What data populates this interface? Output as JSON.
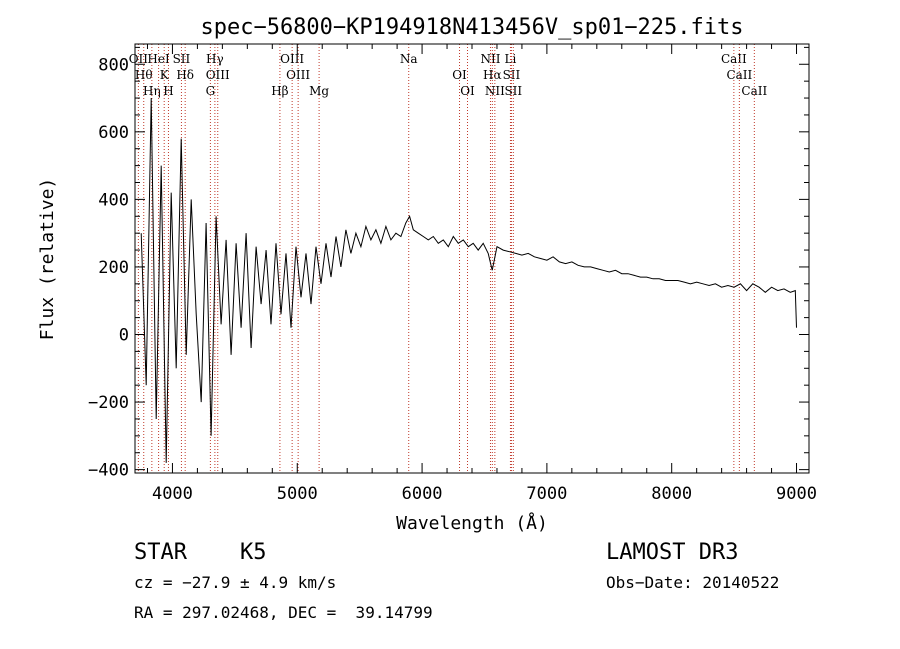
{
  "chart_data": {
    "type": "line",
    "title": "spec−56800−KP194918N413456V_sp01−225.fits",
    "xlabel": "Wavelength (Å)",
    "ylabel": "Flux (relative)",
    "xlim": [
      3700,
      9100
    ],
    "ylim": [
      -410,
      860
    ],
    "x_ticks": [
      4000,
      5000,
      6000,
      7000,
      8000,
      9000
    ],
    "y_ticks": [
      -400,
      -200,
      0,
      200,
      400,
      600,
      800
    ],
    "y_tick_labels": [
      "−400",
      "−200",
      "0",
      "200",
      "400",
      "600",
      "800"
    ],
    "grid": false,
    "series": [
      {
        "name": "flux",
        "x": [
          3750,
          3790,
          3830,
          3870,
          3910,
          3950,
          3990,
          4030,
          4070,
          4110,
          4150,
          4190,
          4230,
          4270,
          4310,
          4350,
          4390,
          4430,
          4470,
          4510,
          4550,
          4590,
          4630,
          4670,
          4710,
          4750,
          4790,
          4830,
          4870,
          4910,
          4950,
          4990,
          5030,
          5070,
          5110,
          5150,
          5190,
          5230,
          5270,
          5310,
          5350,
          5390,
          5430,
          5470,
          5510,
          5550,
          5590,
          5630,
          5670,
          5710,
          5750,
          5790,
          5830,
          5870,
          5900,
          5930,
          5970,
          6010,
          6050,
          6090,
          6130,
          6170,
          6210,
          6250,
          6290,
          6330,
          6370,
          6410,
          6450,
          6490,
          6530,
          6562,
          6600,
          6650,
          6700,
          6750,
          6800,
          6850,
          6900,
          6950,
          7000,
          7050,
          7100,
          7150,
          7200,
          7250,
          7300,
          7350,
          7400,
          7450,
          7500,
          7550,
          7600,
          7650,
          7700,
          7750,
          7800,
          7850,
          7900,
          7950,
          8000,
          8050,
          8100,
          8150,
          8200,
          8250,
          8300,
          8350,
          8400,
          8450,
          8500,
          8550,
          8600,
          8650,
          8700,
          8750,
          8800,
          8850,
          8900,
          8950,
          8990,
          9000
        ],
        "y": [
          300,
          -150,
          700,
          -250,
          500,
          -380,
          420,
          -100,
          580,
          -60,
          400,
          60,
          -200,
          330,
          -300,
          350,
          30,
          280,
          -60,
          270,
          20,
          300,
          -40,
          260,
          90,
          250,
          30,
          270,
          60,
          240,
          20,
          260,
          110,
          240,
          90,
          260,
          150,
          270,
          170,
          290,
          200,
          310,
          240,
          300,
          260,
          320,
          280,
          310,
          270,
          320,
          280,
          300,
          290,
          330,
          350,
          310,
          300,
          290,
          280,
          290,
          270,
          280,
          260,
          290,
          270,
          280,
          260,
          270,
          250,
          270,
          240,
          190,
          260,
          250,
          245,
          240,
          235,
          240,
          230,
          225,
          220,
          230,
          215,
          210,
          215,
          205,
          200,
          200,
          195,
          190,
          185,
          190,
          180,
          180,
          175,
          170,
          170,
          165,
          165,
          160,
          160,
          160,
          155,
          150,
          155,
          150,
          145,
          150,
          140,
          145,
          140,
          150,
          130,
          150,
          140,
          125,
          140,
          130,
          135,
          125,
          130,
          20
        ]
      }
    ],
    "line_markers": [
      {
        "wavelength": 3727,
        "label": "OII"
      },
      {
        "wavelength": 3770,
        "label": "Hθ"
      },
      {
        "wavelength": 3835,
        "label": "Hη"
      },
      {
        "wavelength": 3889,
        "label": "HeI"
      },
      {
        "wavelength": 3934,
        "label": "K"
      },
      {
        "wavelength": 3968,
        "label": "H"
      },
      {
        "wavelength": 4072,
        "label": "SII"
      },
      {
        "wavelength": 4102,
        "label": "Hδ"
      },
      {
        "wavelength": 4304,
        "label": "G"
      },
      {
        "wavelength": 4340,
        "label": "Hγ"
      },
      {
        "wavelength": 4363,
        "label": "OIII"
      },
      {
        "wavelength": 4861,
        "label": "Hβ"
      },
      {
        "wavelength": 4959,
        "label": "OIII"
      },
      {
        "wavelength": 5007,
        "label": "OIII"
      },
      {
        "wavelength": 5175,
        "label": "Mg"
      },
      {
        "wavelength": 5893,
        "label": "Na"
      },
      {
        "wavelength": 6300,
        "label": "OI"
      },
      {
        "wavelength": 6364,
        "label": "OI"
      },
      {
        "wavelength": 6548,
        "label": "NII"
      },
      {
        "wavelength": 6563,
        "label": "Hα"
      },
      {
        "wavelength": 6583,
        "label": "NII"
      },
      {
        "wavelength": 6708,
        "label": "Li"
      },
      {
        "wavelength": 6716,
        "label": "SII"
      },
      {
        "wavelength": 6731,
        "label": "SII"
      },
      {
        "wavelength": 8498,
        "label": "CaII"
      },
      {
        "wavelength": 8542,
        "label": "CaII"
      },
      {
        "wavelength": 8662,
        "label": "CaII"
      }
    ]
  },
  "info": {
    "object_class": "STAR",
    "subclass": "K5",
    "survey": "LAMOST DR3",
    "velocity": "cz = −27.9 ± 4.9 km/s",
    "obs_date": "Obs−Date: 20140522",
    "coords": "RA = 297.02468, DEC =  39.14799"
  }
}
